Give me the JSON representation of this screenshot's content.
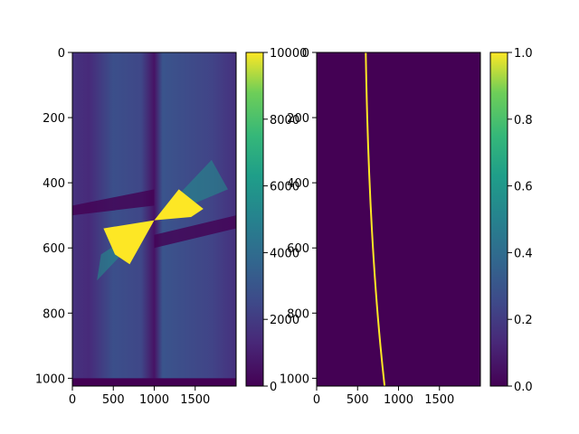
{
  "chart_data": [
    {
      "type": "image",
      "colormap": "viridis",
      "xlim": [
        0,
        2000
      ],
      "ylim": [
        1024,
        0
      ],
      "xticks": [
        0,
        500,
        1000,
        1500
      ],
      "yticks": [
        0,
        200,
        400,
        600,
        800,
        1000
      ],
      "colorbar": {
        "clim": [
          0,
          10000
        ],
        "ticks": [
          0,
          2000,
          4000,
          6000,
          8000,
          10000
        ]
      }
    },
    {
      "type": "image",
      "colormap": "viridis",
      "xlim": [
        0,
        2000
      ],
      "ylim": [
        1024,
        0
      ],
      "xticks": [
        0,
        500,
        1000,
        1500
      ],
      "yticks": [
        0,
        200,
        400,
        600,
        800,
        1000
      ],
      "colorbar": {
        "clim": [
          0,
          1
        ],
        "ticks": [
          {
            "value": 0,
            "label": "0.0"
          },
          0.2,
          0.4,
          0.6,
          0.8,
          {
            "value": 1,
            "label": "1.0"
          }
        ]
      }
    }
  ]
}
